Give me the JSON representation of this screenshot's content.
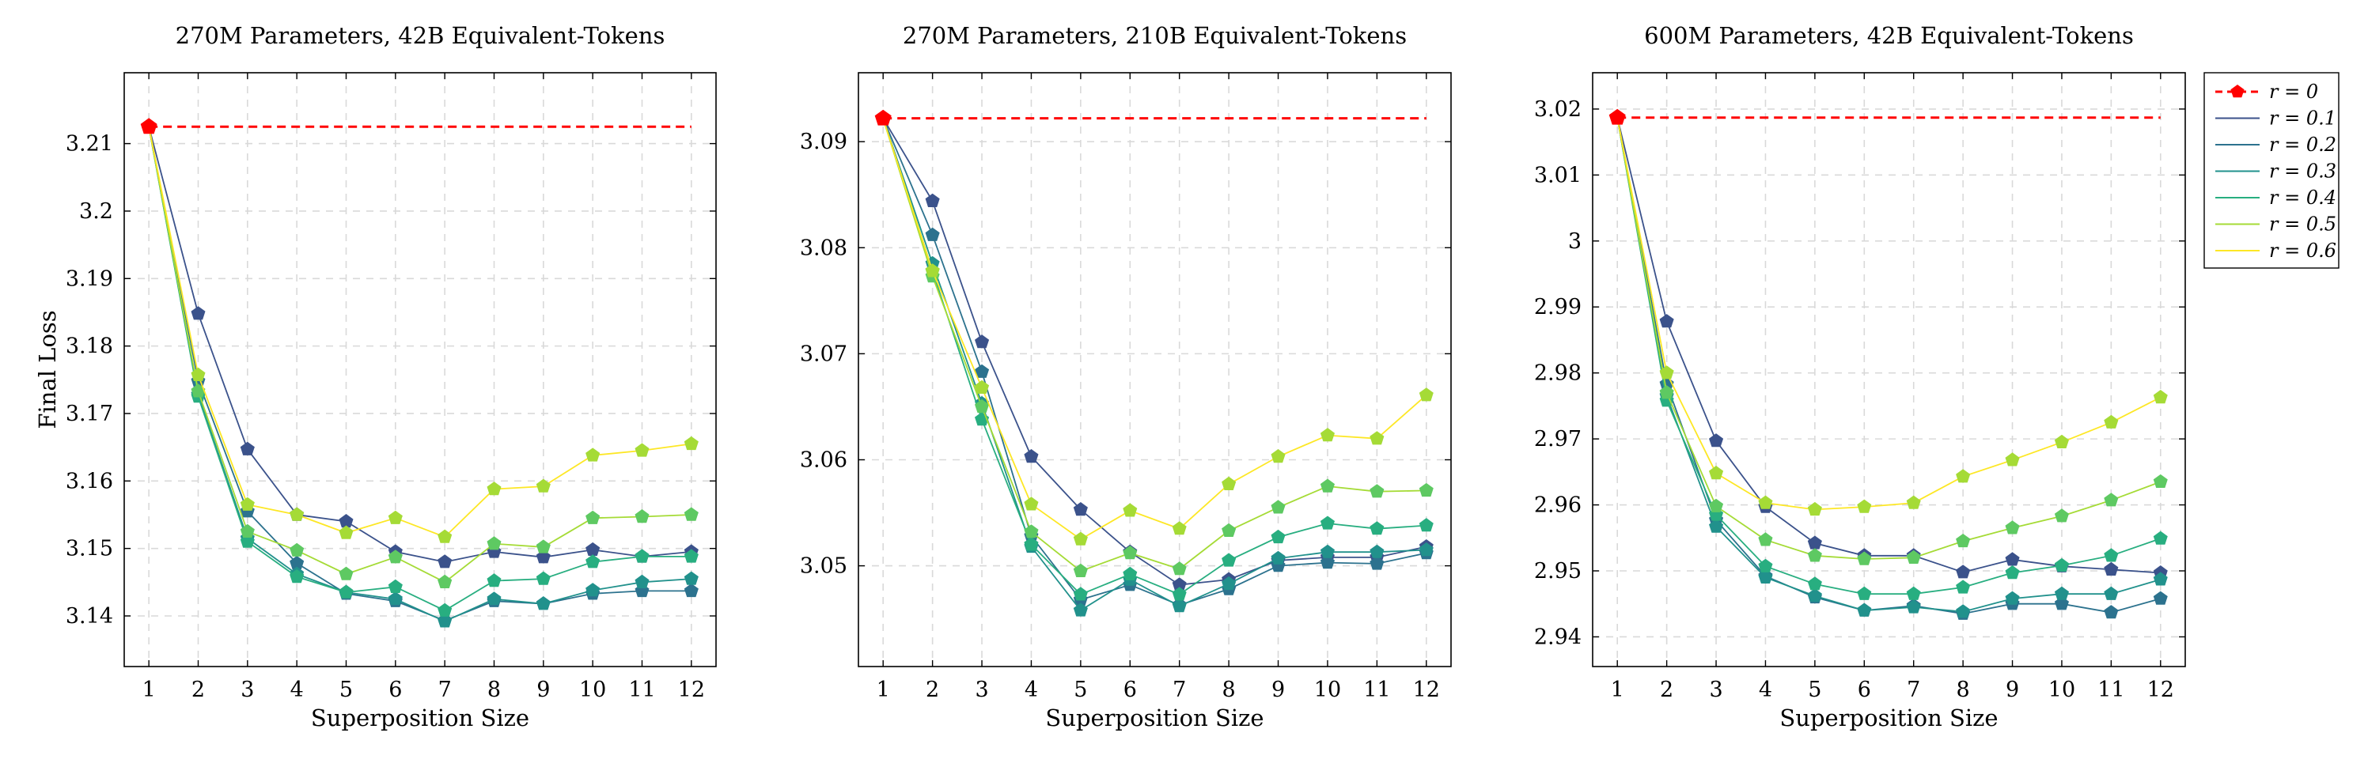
{
  "colors": {
    "r=0": "#ff0000",
    "r=0.1": "#3b528b",
    "r=0.2": "#2c728e",
    "r=0.3": "#21918c",
    "r=0.4": "#28ae80",
    "r=0.5": "#5ec962",
    "r=0.6": "#a5db36",
    "r=0.7": "#fde725"
  },
  "legend": {
    "placement": "top-right, outside third panel",
    "labels": [
      "r = 0",
      "r = 0.1",
      "r = 0.2",
      "r = 0.3",
      "r = 0.4",
      "r = 0.5",
      "r = 0.6"
    ]
  },
  "chart_data": [
    {
      "type": "line",
      "title": "270M Parameters, 42B Equivalent-Tokens",
      "xlabel": "Superposition Size",
      "ylabel": "Final Loss",
      "x": [
        1,
        2,
        3,
        4,
        5,
        6,
        7,
        8,
        9,
        10,
        11,
        12
      ],
      "xlim": [
        0.5,
        12.5
      ],
      "ylim": [
        3.1325,
        3.2205
      ],
      "yticks": [
        3.14,
        3.15,
        3.16,
        3.17,
        3.18,
        3.19,
        3.2,
        3.21
      ],
      "yticklabels": [
        "3.14",
        "3.15",
        "3.16",
        "3.17",
        "3.18",
        "3.19",
        "3.2",
        "3.21"
      ],
      "grid": true,
      "baseline": {
        "name": "r = 0",
        "value": 3.2125
      },
      "series": [
        {
          "name": "r = 0.1",
          "values": [
            3.2125,
            3.1848,
            3.1647,
            3.155,
            3.154,
            3.1495,
            3.148,
            3.1495,
            3.1487,
            3.1498,
            3.1488,
            3.1495
          ]
        },
        {
          "name": "r = 0.2",
          "values": [
            3.2125,
            3.1748,
            3.1555,
            3.1478,
            3.1433,
            3.1422,
            3.1393,
            3.1422,
            3.1418,
            3.1433,
            3.1437,
            3.1437
          ]
        },
        {
          "name": "r = 0.3",
          "values": [
            3.2125,
            3.1728,
            3.1515,
            3.1462,
            3.1435,
            3.1425,
            3.1392,
            3.1425,
            3.1418,
            3.1438,
            3.145,
            3.1455
          ]
        },
        {
          "name": "r = 0.4",
          "values": [
            3.2125,
            3.1725,
            3.151,
            3.1458,
            3.1435,
            3.1443,
            3.1408,
            3.1452,
            3.1455,
            3.148,
            3.1488,
            3.1488
          ]
        },
        {
          "name": "r = 0.5",
          "values": [
            3.2125,
            3.1733,
            3.1525,
            3.1497,
            3.1462,
            3.1487,
            3.145,
            3.1507,
            3.1502,
            3.1545,
            3.1547,
            3.155
          ]
        },
        {
          "name": "r = 0.6",
          "values": [
            3.2125,
            3.1757,
            3.1565,
            3.155,
            3.1523,
            3.1545,
            3.1517,
            3.1588,
            3.1592,
            3.1638,
            3.1645,
            3.1655
          ]
        }
      ]
    },
    {
      "type": "line",
      "title": "270M Parameters, 210B Equivalent-Tokens",
      "xlabel": "Superposition Size",
      "ylabel": "",
      "x": [
        1,
        2,
        3,
        4,
        5,
        6,
        7,
        8,
        9,
        10,
        11,
        12
      ],
      "xlim": [
        0.5,
        12.5
      ],
      "ylim": [
        3.0405,
        3.0965
      ],
      "yticks": [
        3.05,
        3.06,
        3.07,
        3.08,
        3.09
      ],
      "yticklabels": [
        "3.05",
        "3.06",
        "3.07",
        "3.08",
        "3.09"
      ],
      "grid": true,
      "baseline": {
        "name": "r = 0",
        "value": 3.0922
      },
      "series": [
        {
          "name": "r = 0.1",
          "values": [
            3.0922,
            3.0844,
            3.0711,
            3.0603,
            3.0553,
            3.0513,
            3.0482,
            3.0487,
            3.0505,
            3.0508,
            3.0508,
            3.0518
          ]
        },
        {
          "name": "r = 0.2",
          "values": [
            3.0922,
            3.0812,
            3.0683,
            3.0528,
            3.0468,
            3.0482,
            3.0463,
            3.0478,
            3.05,
            3.0503,
            3.0502,
            3.0512
          ]
        },
        {
          "name": "r = 0.3",
          "values": [
            3.0922,
            3.0785,
            3.0653,
            3.0518,
            3.0458,
            3.0487,
            3.0462,
            3.0483,
            3.0507,
            3.0513,
            3.0513,
            3.0515
          ]
        },
        {
          "name": "r = 0.4",
          "values": [
            3.0922,
            3.0778,
            3.0638,
            3.052,
            3.0473,
            3.0492,
            3.0473,
            3.0505,
            3.0527,
            3.054,
            3.0535,
            3.0538
          ]
        },
        {
          "name": "r = 0.5",
          "values": [
            3.0922,
            3.0773,
            3.065,
            3.0532,
            3.0495,
            3.0512,
            3.0497,
            3.0533,
            3.0555,
            3.0575,
            3.057,
            3.0571
          ]
        },
        {
          "name": "r = 0.6",
          "values": [
            3.0922,
            3.0778,
            3.0668,
            3.0558,
            3.0525,
            3.0552,
            3.0535,
            3.0577,
            3.0603,
            3.0623,
            3.062,
            3.0661
          ]
        }
      ]
    },
    {
      "type": "line",
      "title": "600M Parameters, 42B Equivalent-Tokens",
      "xlabel": "Superposition Size",
      "ylabel": "",
      "x": [
        1,
        2,
        3,
        4,
        5,
        6,
        7,
        8,
        9,
        10,
        11,
        12
      ],
      "xlim": [
        0.5,
        12.5
      ],
      "ylim": [
        2.9355,
        3.0255
      ],
      "yticks": [
        2.94,
        2.95,
        2.96,
        2.97,
        2.98,
        2.99,
        3.0,
        3.01,
        3.02
      ],
      "yticklabels": [
        "2.94",
        "2.95",
        "2.96",
        "2.97",
        "2.98",
        "2.99",
        "3",
        "3.01",
        "3.02"
      ],
      "grid": true,
      "baseline": {
        "name": "r = 0",
        "value": 3.0187
      },
      "series": [
        {
          "name": "r = 0.1",
          "values": [
            3.0187,
            2.9878,
            2.9697,
            2.9597,
            2.9542,
            2.9523,
            2.9523,
            2.9498,
            2.9517,
            2.9507,
            2.9502,
            2.9497
          ]
        },
        {
          "name": "r = 0.2",
          "values": [
            3.0187,
            2.9783,
            2.9577,
            2.9492,
            2.946,
            2.944,
            2.9447,
            2.9435,
            2.945,
            2.945,
            2.9437,
            2.9458
          ]
        },
        {
          "name": "r = 0.3",
          "values": [
            3.0187,
            2.9765,
            2.9567,
            2.949,
            2.9462,
            2.944,
            2.9445,
            2.9438,
            2.9458,
            2.9465,
            2.9465,
            2.9487
          ]
        },
        {
          "name": "r = 0.4",
          "values": [
            3.0187,
            2.9758,
            2.9585,
            2.9507,
            2.948,
            2.9465,
            2.9465,
            2.9475,
            2.9497,
            2.9508,
            2.9523,
            2.9549
          ]
        },
        {
          "name": "r = 0.5",
          "values": [
            3.0187,
            2.977,
            2.9598,
            2.9547,
            2.9523,
            2.9518,
            2.952,
            2.9545,
            2.9565,
            2.9583,
            2.9607,
            2.9635
          ]
        },
        {
          "name": "r = 0.6",
          "values": [
            3.0187,
            2.98,
            2.9648,
            2.9603,
            2.9593,
            2.9597,
            2.9603,
            2.9643,
            2.9668,
            2.9695,
            2.9725,
            2.9763
          ]
        }
      ]
    }
  ]
}
